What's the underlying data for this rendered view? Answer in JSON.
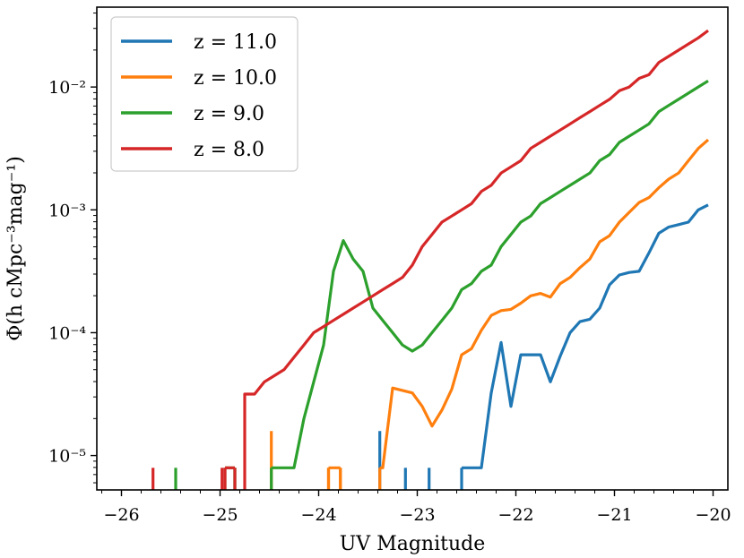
{
  "chart_data": {
    "type": "line",
    "title": "",
    "xlabel": "UV Magnitude",
    "ylabel": "Φ(h cMpc⁻³mag⁻¹)",
    "xlim": [
      -26.25,
      -19.85
    ],
    "ylim_log10": [
      -5.28,
      -1.35
    ],
    "yscale": "log",
    "xticks": [
      -26,
      -25,
      -24,
      -23,
      -22,
      -21,
      -20
    ],
    "xtick_labels": [
      "−26",
      "−25",
      "−24",
      "−23",
      "−22",
      "−21",
      "−20"
    ],
    "yticks_log10": [
      -5,
      -4,
      -3,
      -2
    ],
    "ytick_labels": [
      "10⁻⁵",
      "10⁻⁴",
      "10⁻³",
      "10⁻²"
    ],
    "legend_position": "upper-left",
    "series": [
      {
        "name": "z = 11.0",
        "color": "#1f77b4",
        "lines": [
          [
            [
              -20.05,
              -2.96
            ],
            [
              -20.15,
              -3.0
            ],
            [
              -20.25,
              -3.1
            ],
            [
              -20.35,
              -3.12
            ],
            [
              -20.45,
              -3.14
            ],
            [
              -20.55,
              -3.19
            ],
            [
              -20.65,
              -3.35
            ],
            [
              -20.75,
              -3.5
            ],
            [
              -20.85,
              -3.51
            ],
            [
              -20.95,
              -3.53
            ],
            [
              -21.05,
              -3.61
            ],
            [
              -21.15,
              -3.8
            ],
            [
              -21.25,
              -3.89
            ],
            [
              -21.35,
              -3.91
            ],
            [
              -21.45,
              -4.0
            ],
            [
              -21.55,
              -4.19
            ],
            [
              -21.65,
              -4.4
            ],
            [
              -21.75,
              -4.18
            ],
            [
              -21.85,
              -4.18
            ],
            [
              -21.95,
              -4.18
            ],
            [
              -22.05,
              -4.6
            ],
            [
              -22.15,
              -4.08
            ],
            [
              -22.25,
              -4.49
            ],
            [
              -22.35,
              -5.1
            ],
            [
              -22.45,
              -5.1
            ],
            [
              -22.55,
              -5.1
            ]
          ],
          [
            [
              -22.55,
              -5.1
            ],
            [
              -22.55,
              -5.28
            ]
          ]
        ],
        "spikes": [
          [
            -22.88,
            -5.1
          ],
          [
            -23.12,
            -5.1
          ],
          [
            -23.38,
            -4.8
          ]
        ]
      },
      {
        "name": "z = 10.0",
        "color": "#ff7f0e",
        "lines": [
          [
            [
              -20.05,
              -2.43
            ],
            [
              -20.15,
              -2.5
            ],
            [
              -20.25,
              -2.6
            ],
            [
              -20.35,
              -2.7
            ],
            [
              -20.45,
              -2.75
            ],
            [
              -20.55,
              -2.82
            ],
            [
              -20.65,
              -2.9
            ],
            [
              -20.75,
              -2.94
            ],
            [
              -20.85,
              -3.02
            ],
            [
              -20.95,
              -3.1
            ],
            [
              -21.05,
              -3.21
            ],
            [
              -21.15,
              -3.26
            ],
            [
              -21.25,
              -3.4
            ],
            [
              -21.35,
              -3.47
            ],
            [
              -21.45,
              -3.55
            ],
            [
              -21.55,
              -3.6
            ],
            [
              -21.65,
              -3.71
            ],
            [
              -21.75,
              -3.68
            ],
            [
              -21.85,
              -3.7
            ],
            [
              -21.95,
              -3.76
            ],
            [
              -22.05,
              -3.81
            ],
            [
              -22.15,
              -3.82
            ],
            [
              -22.25,
              -3.86
            ],
            [
              -22.35,
              -3.98
            ],
            [
              -22.45,
              -4.13
            ],
            [
              -22.55,
              -4.18
            ],
            [
              -22.65,
              -4.46
            ],
            [
              -22.75,
              -4.63
            ],
            [
              -22.85,
              -4.76
            ],
            [
              -22.95,
              -4.6
            ],
            [
              -23.05,
              -4.49
            ],
            [
              -23.15,
              -4.47
            ],
            [
              -23.25,
              -4.45
            ],
            [
              -23.35,
              -5.1
            ],
            [
              -23.38,
              -5.1
            ]
          ],
          [
            [
              -23.38,
              -5.1
            ],
            [
              -23.38,
              -5.28
            ]
          ]
        ],
        "spikes": [
          [
            -23.78,
            -5.1
          ],
          [
            -23.9,
            -5.1
          ],
          [
            -24.48,
            -4.8
          ]
        ],
        "flat_segments": [
          [
            -23.9,
            -23.78,
            -5.1
          ]
        ]
      },
      {
        "name": "z = 9.0",
        "color": "#2ca02c",
        "lines": [
          [
            [
              -20.05,
              -1.95
            ],
            [
              -20.15,
              -2.0
            ],
            [
              -20.25,
              -2.05
            ],
            [
              -20.35,
              -2.1
            ],
            [
              -20.45,
              -2.15
            ],
            [
              -20.55,
              -2.2
            ],
            [
              -20.65,
              -2.3
            ],
            [
              -20.75,
              -2.35
            ],
            [
              -20.85,
              -2.4
            ],
            [
              -20.95,
              -2.45
            ],
            [
              -21.05,
              -2.55
            ],
            [
              -21.15,
              -2.6
            ],
            [
              -21.25,
              -2.7
            ],
            [
              -21.35,
              -2.75
            ],
            [
              -21.45,
              -2.8
            ],
            [
              -21.55,
              -2.85
            ],
            [
              -21.65,
              -2.9
            ],
            [
              -21.75,
              -2.95
            ],
            [
              -21.85,
              -3.05
            ],
            [
              -21.95,
              -3.1
            ],
            [
              -22.05,
              -3.2
            ],
            [
              -22.15,
              -3.3
            ],
            [
              -22.25,
              -3.45
            ],
            [
              -22.35,
              -3.5
            ],
            [
              -22.45,
              -3.6
            ],
            [
              -22.55,
              -3.65
            ],
            [
              -22.65,
              -3.8
            ],
            [
              -22.75,
              -3.9
            ],
            [
              -22.85,
              -4.0
            ],
            [
              -22.95,
              -4.1
            ],
            [
              -23.05,
              -4.15
            ],
            [
              -23.15,
              -4.1
            ],
            [
              -23.25,
              -4.0
            ],
            [
              -23.35,
              -3.9
            ],
            [
              -23.45,
              -3.8
            ],
            [
              -23.55,
              -3.5
            ],
            [
              -23.65,
              -3.4
            ],
            [
              -23.75,
              -3.25
            ],
            [
              -23.85,
              -3.5
            ],
            [
              -23.95,
              -4.1
            ],
            [
              -24.05,
              -4.4
            ],
            [
              -24.15,
              -4.7
            ],
            [
              -24.25,
              -5.1
            ],
            [
              -24.35,
              -5.1
            ],
            [
              -24.48,
              -5.1
            ]
          ],
          [
            [
              -24.48,
              -5.1
            ],
            [
              -24.48,
              -5.28
            ]
          ]
        ],
        "spikes": [
          [
            -24.85,
            -5.1
          ],
          [
            -25.45,
            -5.1
          ]
        ],
        "flat_segments": [
          [
            -24.85,
            -24.95,
            -5.1
          ]
        ]
      },
      {
        "name": "z = 8.0",
        "color": "#d62728",
        "lines": [
          [
            [
              -20.05,
              -1.54
            ],
            [
              -20.15,
              -1.6
            ],
            [
              -20.25,
              -1.65
            ],
            [
              -20.35,
              -1.7
            ],
            [
              -20.45,
              -1.75
            ],
            [
              -20.55,
              -1.8
            ],
            [
              -20.65,
              -1.9
            ],
            [
              -20.75,
              -1.93
            ],
            [
              -20.85,
              -2.0
            ],
            [
              -20.95,
              -2.03
            ],
            [
              -21.05,
              -2.1
            ],
            [
              -21.15,
              -2.15
            ],
            [
              -21.25,
              -2.2
            ],
            [
              -21.35,
              -2.25
            ],
            [
              -21.45,
              -2.3
            ],
            [
              -21.55,
              -2.35
            ],
            [
              -21.65,
              -2.4
            ],
            [
              -21.75,
              -2.45
            ],
            [
              -21.85,
              -2.5
            ],
            [
              -21.95,
              -2.6
            ],
            [
              -22.05,
              -2.65
            ],
            [
              -22.15,
              -2.7
            ],
            [
              -22.25,
              -2.8
            ],
            [
              -22.35,
              -2.85
            ],
            [
              -22.45,
              -2.95
            ],
            [
              -22.55,
              -3.0
            ],
            [
              -22.65,
              -3.05
            ],
            [
              -22.75,
              -3.1
            ],
            [
              -22.85,
              -3.2
            ],
            [
              -22.95,
              -3.3
            ],
            [
              -23.05,
              -3.45
            ],
            [
              -23.15,
              -3.55
            ],
            [
              -23.25,
              -3.6
            ],
            [
              -23.35,
              -3.65
            ],
            [
              -23.45,
              -3.7
            ],
            [
              -23.55,
              -3.75
            ],
            [
              -23.65,
              -3.8
            ],
            [
              -23.75,
              -3.85
            ],
            [
              -23.85,
              -3.9
            ],
            [
              -23.95,
              -3.95
            ],
            [
              -24.05,
              -4.0
            ],
            [
              -24.15,
              -4.1
            ],
            [
              -24.25,
              -4.2
            ],
            [
              -24.35,
              -4.3
            ],
            [
              -24.45,
              -4.35
            ],
            [
              -24.55,
              -4.4
            ],
            [
              -24.65,
              -4.5
            ],
            [
              -24.75,
              -4.5
            ],
            [
              -24.75,
              -5.28
            ]
          ]
        ],
        "spikes": [
          [
            -24.98,
            -5.1
          ],
          [
            -25.68,
            -5.1
          ]
        ],
        "flat_segments": [
          [
            -24.85,
            -24.95,
            -5.1
          ]
        ]
      }
    ]
  }
}
